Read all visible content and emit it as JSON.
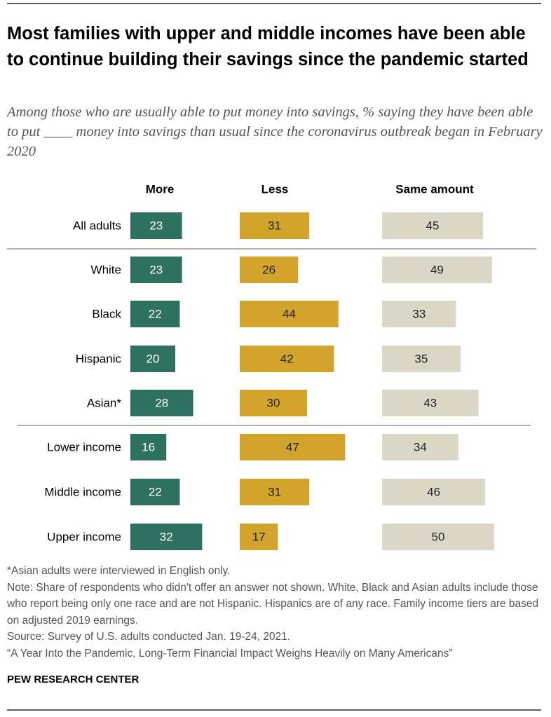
{
  "chart_data": {
    "type": "bar",
    "title": "Most families with upper and middle incomes have been able to continue building their savings since the pandemic started",
    "subtitle": "Among those who are usually able to put money into savings, % saying they have been able to put ____ money into savings than usual since the coronavirus outbreak began in February 2020",
    "categories": [
      "All adults",
      "White",
      "Black",
      "Hispanic",
      "Asian*",
      "Lower income",
      "Middle income",
      "Upper income"
    ],
    "series": [
      {
        "name": "More",
        "color": "#2e7161",
        "values": [
          23,
          23,
          22,
          20,
          28,
          16,
          22,
          32
        ]
      },
      {
        "name": "Less",
        "color": "#d3a42c",
        "values": [
          31,
          26,
          44,
          42,
          30,
          47,
          31,
          17
        ]
      },
      {
        "name": "Same amount",
        "color": "#dcd8c8",
        "values": [
          45,
          49,
          33,
          35,
          43,
          34,
          46,
          50
        ]
      }
    ],
    "notes": [
      "*Asian adults were interviewed in English only.",
      "Note: Share of respondents who didn't offer an answer not shown. White, Black and Asian adults include those who report being only one race and are not Hispanic. Hispanics are of any race. Family income tiers are based on adjusted 2019 earnings.",
      "Source: Survey of U.S. adults conducted Jan. 19-24, 2021.",
      "“A Year Into the Pandemic, Long-Term Financial Impact Weighs Heavily on Many Americans”"
    ],
    "credit": "PEW RESEARCH CENTER"
  }
}
